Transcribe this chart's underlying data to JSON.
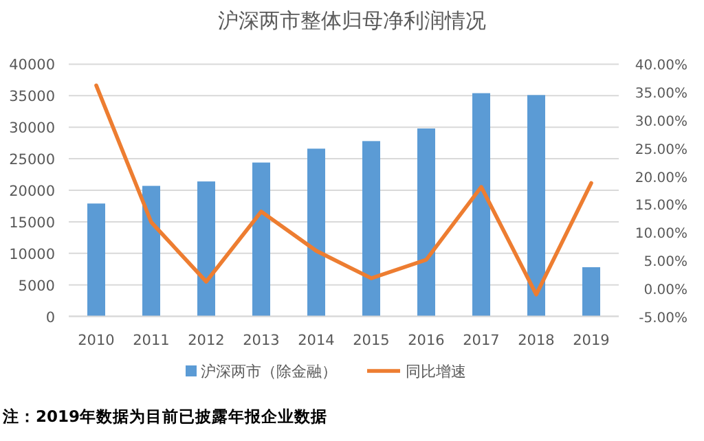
{
  "chart_data": {
    "type": "bar",
    "title": "沪深两市整体归母净利润情况",
    "categories": [
      "2010",
      "2011",
      "2012",
      "2013",
      "2014",
      "2015",
      "2016",
      "2017",
      "2018",
      "2019"
    ],
    "series": [
      {
        "name": "沪深两市（除金融）",
        "color": "#5b9bd5",
        "values": [
          17900,
          20700,
          21400,
          24400,
          26600,
          27800,
          29800,
          35400,
          35100,
          7800
        ]
      },
      {
        "name": "同比增速",
        "type": "line",
        "axis": "y2",
        "color": "#ed7d31",
        "marker": "none",
        "values": [
          36.2,
          11.8,
          1.2,
          13.7,
          6.7,
          1.8,
          5.1,
          18.1,
          -1.1,
          18.8
        ]
      }
    ],
    "ylim": [
      0,
      40000
    ],
    "yticks": [
      0,
      5000,
      10000,
      15000,
      20000,
      25000,
      30000,
      35000,
      40000
    ],
    "y2lim": [
      -5,
      40
    ],
    "y2ticks": [
      {
        "value": -5,
        "label": "-5.00%"
      },
      {
        "value": 0,
        "label": "0.00%"
      },
      {
        "value": 5,
        "label": "5.00%"
      },
      {
        "value": 10,
        "label": "10.00%"
      },
      {
        "value": 15,
        "label": "15.00%"
      },
      {
        "value": 20,
        "label": "20.00%"
      },
      {
        "value": 25,
        "label": "25.00%"
      },
      {
        "value": 30,
        "label": "30.00%"
      },
      {
        "value": 35,
        "label": "35.00%"
      },
      {
        "value": 40,
        "label": "40.00%"
      }
    ],
    "grid": "y",
    "legend": "bottom",
    "annotations": [
      "注：2019年数据为目前已披露年报企业数据"
    ]
  }
}
